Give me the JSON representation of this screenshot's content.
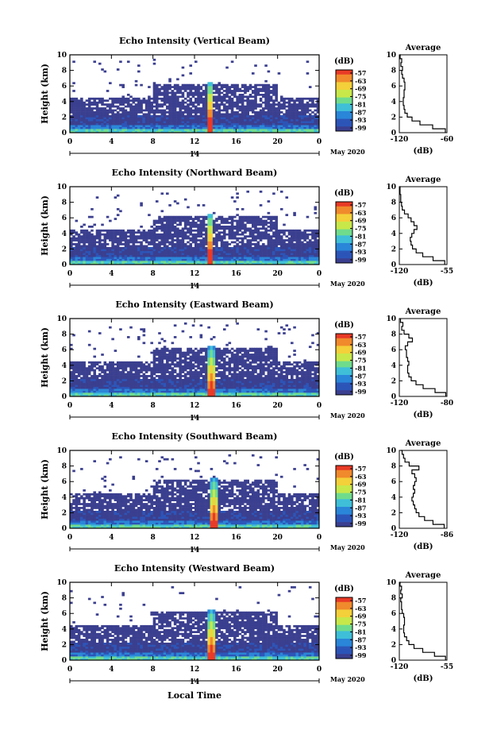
{
  "figure": {
    "x_axis_label": "Local Time",
    "date_label": "May 2020",
    "date_tick_label": "14",
    "colorbar_unit": "(dB)",
    "profile_title": "Average",
    "profile_unit": "(dB)",
    "y_axis_label": "Height (km)"
  },
  "colors": {
    "colormap": [
      "#3b3f8f",
      "#2c55b8",
      "#2a86d8",
      "#3fbfd8",
      "#6fdc8c",
      "#c8e84a",
      "#f4d03a",
      "#f08a2c",
      "#e83a26"
    ],
    "background": "#ffffff",
    "line": "#000000"
  },
  "chart_data": [
    {
      "type": "heatmap",
      "title": "Echo Intensity (Vertical Beam)",
      "xlabel": "Local Time",
      "ylabel": "Height (km)",
      "x_ticks": [
        "0",
        "4",
        "8",
        "12",
        "16",
        "20",
        "0"
      ],
      "xlim": [
        0,
        24
      ],
      "ylim": [
        0,
        10
      ],
      "y_ticks": [
        "0",
        "2",
        "4",
        "6",
        "8",
        "10"
      ],
      "colorbar": {
        "unit": "(dB)",
        "ticks": [
          "-57",
          "-63",
          "-69",
          "-75",
          "-81",
          "-87",
          "-93",
          "-99"
        ]
      },
      "strong_echo_time": 13.5,
      "profile": {
        "title": "Average",
        "xlabel": "(dB)",
        "x_ticks": [
          "-120",
          "-60"
        ],
        "xlim": [
          -120,
          -60
        ],
        "y_ticks": [
          "0",
          "2",
          "4",
          "6",
          "8",
          "10"
        ],
        "height_km": [
          0,
          0.5,
          1,
          1.5,
          2,
          2.5,
          3,
          3.5,
          4,
          4.5,
          5,
          5.5,
          6,
          6.5,
          7,
          7.5,
          8,
          8.5,
          9,
          9.5,
          10
        ],
        "values_db": [
          -62,
          -78,
          -94,
          -104,
          -110,
          -113,
          -114,
          -115,
          -115,
          -114,
          -114,
          -113,
          -113,
          -114,
          -116,
          -117,
          -116,
          -118,
          -117,
          -119,
          -118
        ]
      }
    },
    {
      "type": "heatmap",
      "title": "Echo Intensity (Northward Beam)",
      "xlabel": "Local Time",
      "ylabel": "Height (km)",
      "x_ticks": [
        "0",
        "4",
        "8",
        "12",
        "16",
        "20",
        "0"
      ],
      "xlim": [
        0,
        24
      ],
      "ylim": [
        0,
        10
      ],
      "y_ticks": [
        "0",
        "2",
        "4",
        "6",
        "8",
        "10"
      ],
      "colorbar": {
        "unit": "(dB)",
        "ticks": [
          "-57",
          "-63",
          "-69",
          "-75",
          "-81",
          "-87",
          "-93",
          "-99"
        ]
      },
      "strong_echo_time": 13.5,
      "profile": {
        "title": "Average",
        "xlabel": "(dB)",
        "x_ticks": [
          "-120",
          "-55"
        ],
        "xlim": [
          -120,
          -55
        ],
        "y_ticks": [
          "0",
          "2",
          "4",
          "6",
          "8",
          "10"
        ],
        "height_km": [
          0,
          0.5,
          1,
          1.5,
          2,
          2.5,
          3,
          3.5,
          4,
          4.5,
          5,
          5.5,
          6,
          6.5,
          7,
          7.5,
          8,
          8.5,
          9,
          9.5,
          10
        ],
        "values_db": [
          -58,
          -74,
          -88,
          -97,
          -102,
          -104,
          -105,
          -103,
          -100,
          -96,
          -100,
          -104,
          -108,
          -113,
          -116,
          -117,
          -118,
          -118,
          -119,
          -119,
          -120
        ]
      }
    },
    {
      "type": "heatmap",
      "title": "Echo Intensity (Eastward Beam)",
      "xlabel": "Local Time",
      "ylabel": "Height (km)",
      "x_ticks": [
        "0",
        "4",
        "8",
        "12",
        "16",
        "20",
        "0"
      ],
      "xlim": [
        0,
        24
      ],
      "ylim": [
        0,
        10
      ],
      "y_ticks": [
        "0",
        "2",
        "4",
        "6",
        "8",
        "10"
      ],
      "colorbar": {
        "unit": "(dB)",
        "ticks": [
          "-57",
          "-63",
          "-69",
          "-75",
          "-81",
          "-87",
          "-93",
          "-99"
        ]
      },
      "strong_echo_time": 13.7,
      "profile": {
        "title": "Average",
        "xlabel": "(dB)",
        "x_ticks": [
          "-120",
          "-80"
        ],
        "xlim": [
          -120,
          -80
        ],
        "y_ticks": [
          "0",
          "2",
          "4",
          "6",
          "8",
          "10"
        ],
        "height_km": [
          0,
          0.5,
          1,
          1.5,
          2,
          2.5,
          3,
          3.5,
          4,
          4.5,
          5,
          5.5,
          6,
          6.5,
          7,
          7.5,
          8,
          8.5,
          9,
          9.5,
          10
        ],
        "values_db": [
          -81,
          -90,
          -100,
          -106,
          -110,
          -112,
          -113,
          -113,
          -112,
          -113,
          -114,
          -114,
          -115,
          -113,
          -109,
          -112,
          -116,
          -118,
          -117,
          -119,
          -119
        ]
      }
    },
    {
      "type": "heatmap",
      "title": "Echo Intensity (Southward Beam)",
      "xlabel": "Local Time",
      "ylabel": "Height (km)",
      "x_ticks": [
        "0",
        "4",
        "8",
        "12",
        "16",
        "20",
        "0"
      ],
      "xlim": [
        0,
        24
      ],
      "ylim": [
        0,
        10
      ],
      "y_ticks": [
        "0",
        "2",
        "4",
        "6",
        "8",
        "10"
      ],
      "colorbar": {
        "unit": "(dB)",
        "ticks": [
          "-57",
          "-63",
          "-69",
          "-75",
          "-81",
          "-87",
          "-93",
          "-99"
        ]
      },
      "strong_echo_time": 13.8,
      "profile": {
        "title": "Average",
        "xlabel": "(dB)",
        "x_ticks": [
          "-120",
          "-86"
        ],
        "xlim": [
          -120,
          -86
        ],
        "y_ticks": [
          "0",
          "2",
          "4",
          "6",
          "8",
          "10"
        ],
        "height_km": [
          0,
          0.5,
          1,
          1.5,
          2,
          2.5,
          3,
          3.5,
          4,
          4.5,
          5,
          5.5,
          6,
          6.5,
          7,
          7.5,
          8,
          8.5,
          9,
          9.5,
          10
        ],
        "values_db": [
          -88,
          -96,
          -102,
          -106,
          -108,
          -109,
          -110,
          -111,
          -110,
          -109,
          -110,
          -109,
          -108,
          -109,
          -111,
          -106,
          -113,
          -116,
          -117,
          -118,
          -119
        ]
      }
    },
    {
      "type": "heatmap",
      "title": "Echo Intensity (Westward Beam)",
      "xlabel": "Local Time",
      "ylabel": "Height (km)",
      "x_ticks": [
        "0",
        "4",
        "8",
        "12",
        "16",
        "20",
        "0"
      ],
      "xlim": [
        0,
        24
      ],
      "ylim": [
        0,
        10
      ],
      "y_ticks": [
        "0",
        "2",
        "4",
        "6",
        "8",
        "10"
      ],
      "colorbar": {
        "unit": "(dB)",
        "ticks": [
          "-57",
          "-63",
          "-69",
          "-75",
          "-81",
          "-87",
          "-93",
          "-99"
        ]
      },
      "strong_echo_time": 13.6,
      "profile": {
        "title": "Average",
        "xlabel": "(dB)",
        "x_ticks": [
          "-120",
          "-55"
        ],
        "xlim": [
          -120,
          -55
        ],
        "y_ticks": [
          "0",
          "2",
          "4",
          "6",
          "8",
          "10"
        ],
        "height_km": [
          0,
          0.5,
          1,
          1.5,
          2,
          2.5,
          3,
          3.5,
          4,
          4.5,
          5,
          5.5,
          6,
          6.5,
          7,
          7.5,
          8,
          8.5,
          9,
          9.5,
          10
        ],
        "values_db": [
          -57,
          -72,
          -88,
          -100,
          -107,
          -110,
          -113,
          -114,
          -114,
          -113,
          -113,
          -114,
          -116,
          -117,
          -117,
          -118,
          -116,
          -118,
          -117,
          -119,
          -118
        ]
      }
    }
  ]
}
